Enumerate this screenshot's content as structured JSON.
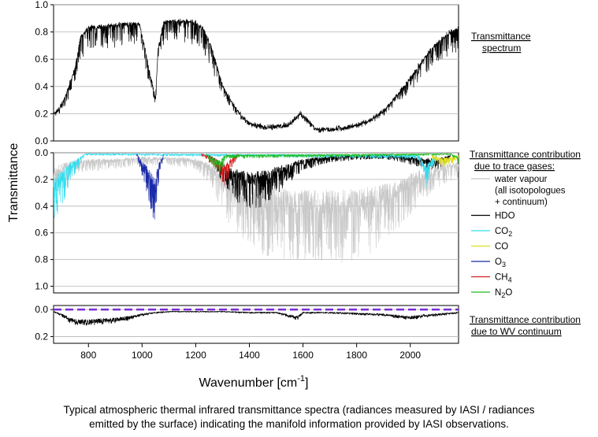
{
  "figure": {
    "caption_line1": "Typical atmospheric thermal infrared transmittance spectra (radiances measured by IASI / radiances",
    "caption_line2": "emitted by the surface) indicating the manifold information provided by IASI observations.",
    "y_axis_title": "Transmittance",
    "x_axis_title": "Wavenumber [cm",
    "x_axis_title_sup": "-1",
    "x_axis_title_end": "]"
  },
  "colors": {
    "water_vapour": "#c8c8c8",
    "HDO": "#000000",
    "CO2": "#33ddee",
    "CO": "#dddd22",
    "O3": "#1a2aa8",
    "CH4": "#d42020",
    "N2O": "#22bb22",
    "continuum_line": "#7a2bd6",
    "spectrum": "#000000"
  },
  "chart_data": [
    {
      "type": "line",
      "title": "",
      "xlabel": "Wavenumber [cm-1]",
      "ylabel": "Transmittance",
      "xlim": [
        670,
        2180
      ],
      "ylim": [
        0.0,
        1.0
      ],
      "y_inverted": false,
      "grid": true,
      "yticks": [
        "0.0",
        "0.2",
        "0.4",
        "0.6",
        "0.8",
        "1.0"
      ],
      "legend_head": [
        "Transmittance",
        "spectrum"
      ],
      "series": [
        {
          "name": "Transmittance spectrum",
          "color": "#000000",
          "x": [
            670,
            690,
            710,
            730,
            750,
            770,
            800,
            850,
            900,
            950,
            990,
            1010,
            1030,
            1050,
            1060,
            1080,
            1100,
            1150,
            1200,
            1230,
            1260,
            1300,
            1350,
            1400,
            1450,
            1500,
            1550,
            1590,
            1620,
            1650,
            1700,
            1750,
            1800,
            1850,
            1900,
            1950,
            2000,
            2050,
            2100,
            2150,
            2180
          ],
          "y": [
            0.22,
            0.25,
            0.32,
            0.44,
            0.55,
            0.78,
            0.85,
            0.86,
            0.87,
            0.88,
            0.88,
            0.7,
            0.5,
            0.33,
            0.7,
            0.89,
            0.9,
            0.9,
            0.89,
            0.84,
            0.7,
            0.42,
            0.25,
            0.14,
            0.12,
            0.12,
            0.14,
            0.22,
            0.16,
            0.1,
            0.1,
            0.11,
            0.13,
            0.17,
            0.24,
            0.35,
            0.48,
            0.62,
            0.74,
            0.82,
            0.84
          ]
        }
      ]
    },
    {
      "type": "line",
      "title": "",
      "xlabel": "Wavenumber [cm-1]",
      "ylabel": "Transmittance",
      "xlim": [
        670,
        2180
      ],
      "ylim": [
        0.0,
        1.05
      ],
      "y_inverted": true,
      "grid": true,
      "yticks": [
        "0.0",
        "0.2",
        "0.4",
        "0.6",
        "0.8",
        "1.0"
      ],
      "legend_head": [
        "Transmittance contribution",
        "due to trace gases:"
      ],
      "series": [
        {
          "name": "water vapour",
          "name_lines": [
            "water vapour",
            "(all isotopologues",
            "+ continuum)"
          ],
          "color_key": "water_vapour",
          "x": [
            670,
            700,
            750,
            800,
            850,
            900,
            950,
            1000,
            1050,
            1100,
            1150,
            1200,
            1250,
            1300,
            1350,
            1400,
            1450,
            1500,
            1550,
            1600,
            1650,
            1700,
            1750,
            1800,
            1850,
            1900,
            1950,
            2000,
            2050,
            2100,
            2150,
            2180
          ],
          "y": [
            0.4,
            0.25,
            0.18,
            0.16,
            0.15,
            0.14,
            0.12,
            0.1,
            0.11,
            0.11,
            0.12,
            0.14,
            0.25,
            0.52,
            0.7,
            0.8,
            0.86,
            0.88,
            0.9,
            0.91,
            0.92,
            0.92,
            0.91,
            0.89,
            0.85,
            0.78,
            0.67,
            0.52,
            0.4,
            0.3,
            0.24,
            0.22
          ]
        },
        {
          "name": "HDO",
          "name_lines": [
            "HDO"
          ],
          "color_key": "HDO",
          "x": [
            1250,
            1300,
            1350,
            1400,
            1450,
            1500,
            1550,
            1600,
            1700,
            1800,
            1900,
            2000,
            2100,
            2150
          ],
          "y": [
            0.05,
            0.25,
            0.4,
            0.48,
            0.45,
            0.35,
            0.25,
            0.15,
            0.08,
            0.06,
            0.05,
            0.1,
            0.15,
            0.05
          ]
        },
        {
          "name": "CO2",
          "name_lines": [
            "CO",
            "2"
          ],
          "color_key": "CO2",
          "x": [
            670,
            690,
            710,
            730,
            750,
            770,
            790,
            2030,
            2060,
            2080,
            2100
          ],
          "y": [
            0.55,
            0.52,
            0.4,
            0.25,
            0.18,
            0.1,
            0.02,
            0.05,
            0.3,
            0.15,
            0.02
          ]
        },
        {
          "name": "CO",
          "name_lines": [
            "CO"
          ],
          "color_key": "CO",
          "x": [
            2080,
            2120,
            2150,
            2180
          ],
          "y": [
            0.05,
            0.12,
            0.1,
            0.05
          ]
        },
        {
          "name": "O3",
          "name_lines": [
            "O",
            "3"
          ],
          "color_key": "O3",
          "x": [
            980,
            1000,
            1020,
            1040,
            1050,
            1060,
            1080
          ],
          "y": [
            0.02,
            0.2,
            0.35,
            0.55,
            0.58,
            0.3,
            0.03
          ]
        },
        {
          "name": "CH4",
          "name_lines": [
            "CH",
            "4"
          ],
          "color_key": "CH4",
          "x": [
            1220,
            1260,
            1290,
            1310,
            1330,
            1360
          ],
          "y": [
            0.02,
            0.1,
            0.2,
            0.3,
            0.15,
            0.02
          ]
        },
        {
          "name": "N2O",
          "name_lines": [
            "N",
            "2",
            "O"
          ],
          "color_key": "N2O",
          "x": [
            1240,
            1270,
            1290,
            1310,
            2150,
            2180
          ],
          "y": [
            0.02,
            0.15,
            0.2,
            0.05,
            0.02,
            0.1
          ]
        }
      ]
    },
    {
      "type": "line",
      "title": "",
      "xlabel": "Wavenumber [cm-1]",
      "ylabel": "Transmittance",
      "xlim": [
        670,
        2180
      ],
      "ylim": [
        -0.03,
        0.25
      ],
      "y_inverted": true,
      "grid": true,
      "yticks": [
        "0.0",
        "0.2"
      ],
      "xticks": [
        800,
        1000,
        1200,
        1400,
        1600,
        1800,
        2000
      ],
      "legend_head": [
        "Transmittance contribution",
        "due to WV continuum"
      ],
      "series": [
        {
          "name": "WV continuum",
          "color_key": "spectrum",
          "x": [
            670,
            700,
            730,
            760,
            800,
            850,
            900,
            950,
            1000,
            1050,
            1100,
            1200,
            1300,
            1400,
            1500,
            1580,
            1600,
            1700,
            1800,
            1900,
            2000,
            2050,
            2100,
            2180
          ],
          "y": [
            0.02,
            0.05,
            0.1,
            0.12,
            0.12,
            0.11,
            0.1,
            0.08,
            0.05,
            0.03,
            0.02,
            0.02,
            0.02,
            0.03,
            0.03,
            0.08,
            0.03,
            0.03,
            0.04,
            0.05,
            0.08,
            0.06,
            0.05,
            0.03
          ]
        },
        {
          "name": "zero reference",
          "color_key": "continuum_line",
          "x": [
            670,
            2180
          ],
          "y": [
            0.0,
            0.0
          ]
        }
      ]
    }
  ]
}
